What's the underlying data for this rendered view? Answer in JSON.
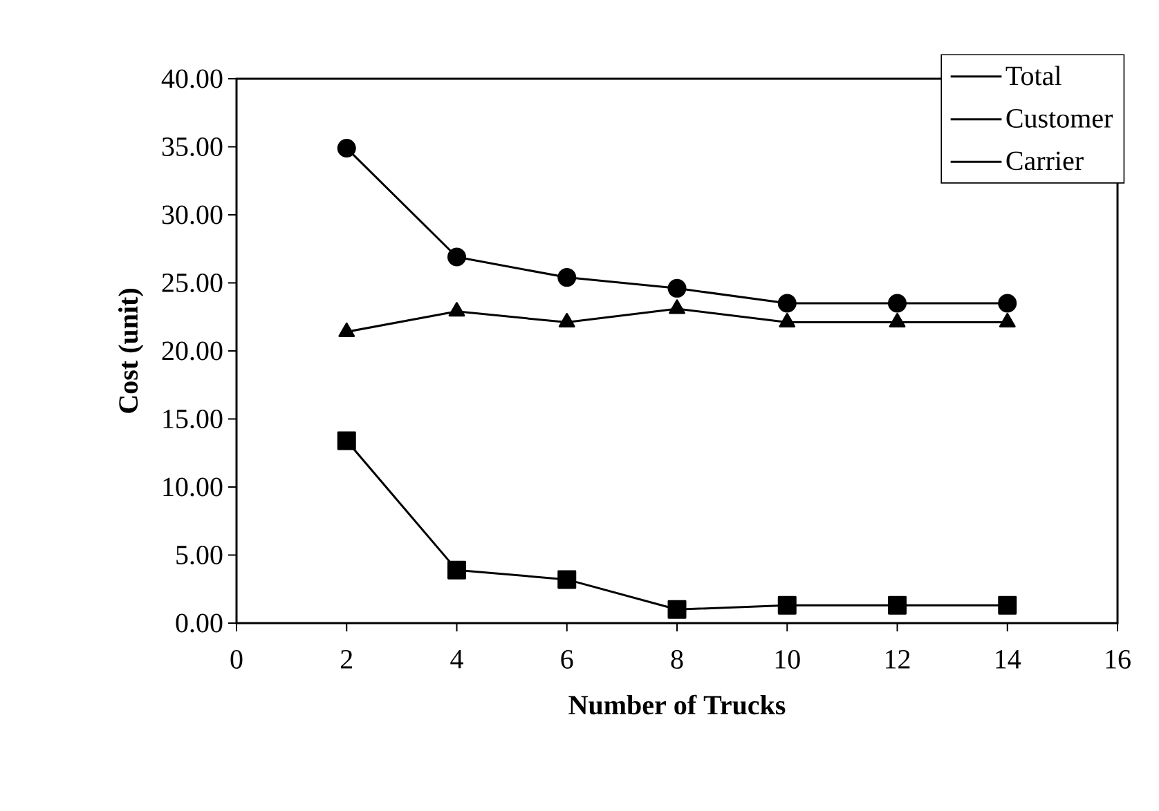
{
  "chart_data": {
    "type": "line",
    "xlabel": "Number of Trucks",
    "ylabel": "Cost (unit)",
    "x": [
      2,
      4,
      6,
      8,
      10,
      12,
      14
    ],
    "series": [
      {
        "name": "Total",
        "color": "#000000",
        "marker": "circle",
        "values": [
          34.9,
          26.9,
          25.4,
          24.6,
          23.5,
          23.5,
          23.5
        ]
      },
      {
        "name": "Customer",
        "color": "#000000",
        "marker": "square",
        "values": [
          13.4,
          3.9,
          3.2,
          1.0,
          1.3,
          1.3,
          1.3
        ]
      },
      {
        "name": "Carrier",
        "color": "#000000",
        "marker": "triangle",
        "values": [
          21.4,
          22.9,
          22.1,
          23.1,
          22.1,
          22.1,
          22.1
        ]
      }
    ],
    "xlim": [
      0,
      16
    ],
    "xticks": [
      0,
      2,
      4,
      6,
      8,
      10,
      12,
      14,
      16
    ],
    "ylim": [
      0,
      40
    ],
    "yticks": [
      {
        "value": 0,
        "label": "0.00"
      },
      {
        "value": 5,
        "label": "5.00"
      },
      {
        "value": 10,
        "label": "10.00"
      },
      {
        "value": 15,
        "label": "15.00"
      },
      {
        "value": 20,
        "label": "20.00"
      },
      {
        "value": 25,
        "label": "25.00"
      },
      {
        "value": 30,
        "label": "30.00"
      },
      {
        "value": 35,
        "label": "35.00"
      },
      {
        "value": 40,
        "label": "40.00"
      }
    ],
    "grid": false,
    "legend": "top right",
    "line_style": "solid"
  }
}
